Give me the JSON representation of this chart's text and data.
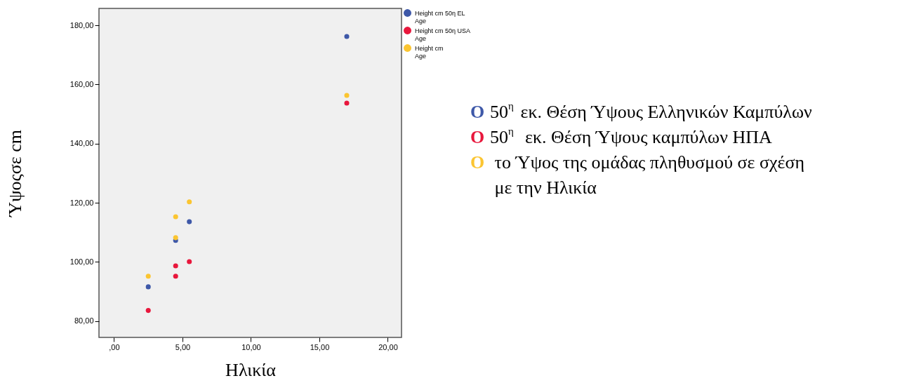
{
  "chart_data": {
    "type": "scatter",
    "xlabel": "Ηλικία",
    "ylabel": "Ύψοςσε cm",
    "series": [
      {
        "name": "Height cm 50η EL\nAge",
        "color": "#3e58a8",
        "x": [
          2.5,
          4.5,
          5.5,
          17
        ],
        "values": [
          91.6,
          107.3,
          113.6,
          176.2
        ]
      },
      {
        "name": "Height cm 50η USA\nAge",
        "color": "#e8173c",
        "x": [
          2.5,
          4.5,
          4.5,
          5.5,
          17
        ],
        "values": [
          83.6,
          98.7,
          95.2,
          100.1,
          153.7
        ]
      },
      {
        "name": "Height cm\nAge",
        "color": "#fbc531",
        "x": [
          2.5,
          4.5,
          4.5,
          5.5,
          17
        ],
        "values": [
          95.2,
          115.3,
          108.2,
          120.3,
          156.3
        ]
      }
    ],
    "xlim": [
      -1.1,
      21.0
    ],
    "ylim": [
      74.5,
      185.7
    ],
    "xticks": [
      {
        "value": 0,
        "label": ",00"
      },
      {
        "value": 5,
        "label": "5,00"
      },
      {
        "value": 10,
        "label": "10,00"
      },
      {
        "value": 15,
        "label": "15,00"
      },
      {
        "value": 20,
        "label": "20,00"
      }
    ],
    "yticks": [
      {
        "value": 80,
        "label": "80,00"
      },
      {
        "value": 100,
        "label": "100,00"
      },
      {
        "value": 120,
        "label": "120,00"
      },
      {
        "value": 140,
        "label": "140,00"
      },
      {
        "value": 160,
        "label": "160,00"
      },
      {
        "value": 180,
        "label": "180,00"
      }
    ],
    "annotations": [
      "O 50$^{η}$ εκ. Θέση Ύψους Ελληνικών Καμπύλων",
      "O 50$^{η}$  εκ. Θέση Ύψους καμπύλων ΗΠΑ",
      "O  το Ύψος της ομάδας πληθυσμού σε σχέση\nμε την Ηλικία"
    ],
    "grid": false,
    "legend": "top right",
    "marker": "circle"
  }
}
